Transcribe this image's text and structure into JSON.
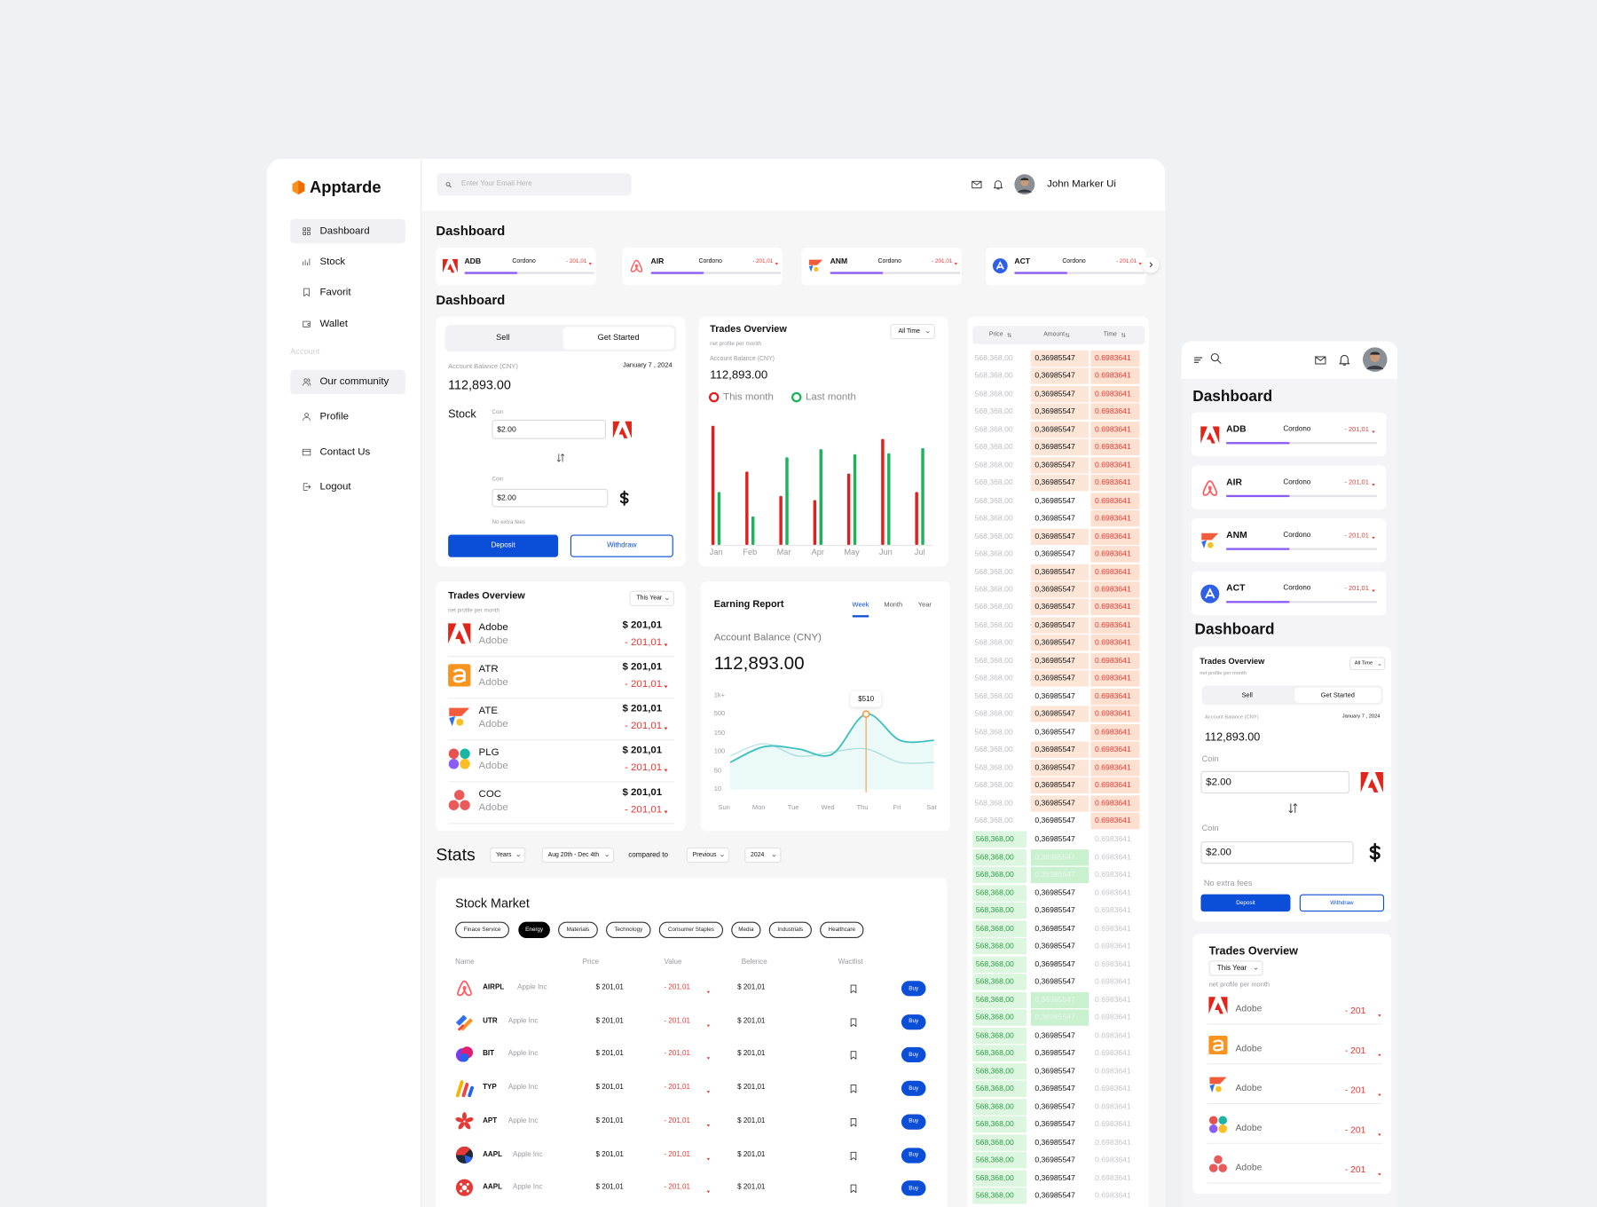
{
  "sidebar": {
    "brand": "Apptarde",
    "menu": [
      "Dashboard",
      "Stock",
      "Favorit",
      "Wallet"
    ],
    "section": "Account",
    "account_menu": [
      "Our community",
      "Profile",
      "Contact Us",
      "Logout"
    ]
  },
  "header": {
    "search_placeholder": "Enter Your Email Here",
    "user": "John Marker Ui"
  },
  "titles": [
    "Dashboard",
    "Dashboard"
  ],
  "tickers": [
    {
      "symbol": "ADB",
      "name": "Cordono",
      "change": "- 201,01"
    },
    {
      "symbol": "AIR",
      "name": "Cordono",
      "change": "- 201,01"
    },
    {
      "symbol": "ANM",
      "name": "Cordono",
      "change": "- 201,01"
    },
    {
      "symbol": "ACT",
      "name": "Cordono",
      "change": "- 201,01"
    }
  ],
  "exchange": {
    "tabs": [
      "Sell",
      "Get Started"
    ],
    "balance_label": "Account Balance (CNY)",
    "date": "January 7 , 2024",
    "balance": "112,893.00",
    "stock_label": "Stock",
    "coins": [
      {
        "label": "Coin",
        "value": "$2.00"
      },
      {
        "label": "Coin",
        "value": "$2.00"
      }
    ],
    "fees": "No extra fees",
    "buttons": [
      "Deposit",
      "Withdraw"
    ]
  },
  "chart_data": [
    {
      "type": "bar",
      "title": "Trades Overview",
      "period": "All Time",
      "subtitle": "net profile per month",
      "balance_label": "Account Balance (CNY)",
      "balance": "112,893.00",
      "categories": [
        "Jan",
        "Feb",
        "Mar",
        "Apr",
        "May",
        "Jun",
        "Jul"
      ],
      "series": [
        {
          "name": "This month",
          "color": "#e0201f",
          "values": [
            117,
            72,
            48,
            44,
            70,
            104,
            52
          ]
        },
        {
          "name": "Last month",
          "color": "#1cb35c",
          "values": [
            52,
            28,
            86,
            94,
            89,
            90,
            95
          ]
        }
      ],
      "ylim": [
        0,
        120
      ]
    },
    {
      "type": "line",
      "title": "Earning Report",
      "tabs": [
        "Week",
        "Month",
        "Year"
      ],
      "active_tab": 0,
      "balance_label": "Account Balance (CNY)",
      "balance": "112,893.00",
      "categories": [
        "Sun",
        "Mon",
        "Tue",
        "Wed",
        "Thu",
        "Fri",
        "Sat"
      ],
      "series": [
        {
          "color": "#3fc1bf",
          "values": [
            72,
            114,
            108,
            94,
            510,
            131,
            131
          ],
          "value_labels": [
            null,
            null,
            null,
            null,
            "$510",
            null,
            null
          ]
        },
        {
          "color": "#b9e4e3",
          "values": [
            89,
            122,
            89,
            100,
            108,
            72,
            72
          ]
        }
      ],
      "ylim": [
        10,
        1000
      ],
      "yticks": [
        10,
        50,
        100,
        150,
        500,
        {
          "value": 1000,
          "label": "1k+"
        }
      ]
    }
  ],
  "trades_overview": {
    "title": "Trades Overview",
    "period": "This Year",
    "subtitle": "net profile per month",
    "items": [
      {
        "symbol": "Adobe",
        "name": "Adobe",
        "price": "$ 201,01",
        "change": "- 201,01"
      },
      {
        "symbol": "ATR",
        "name": "Adobe",
        "price": "$ 201,01",
        "change": "- 201,01"
      },
      {
        "symbol": "ATE",
        "name": "Adobe",
        "price": "$ 201,01",
        "change": "- 201,01"
      },
      {
        "symbol": "PLG",
        "name": "Adobe",
        "price": "$ 201,01",
        "change": "- 201,01"
      },
      {
        "symbol": "COC",
        "name": "Adobe",
        "price": "$ 201,01",
        "change": "- 201,01"
      }
    ]
  },
  "stats": {
    "title": "Stats",
    "filters": [
      "Years",
      "Aug 20th - Dec 4th"
    ],
    "compare_label": "compared to",
    "compare_filters": [
      "Previous",
      "2024"
    ]
  },
  "stock_market": {
    "title": "Stock Market",
    "chips": [
      "Finace Service",
      "Energy",
      "Materials",
      "Technology",
      "Consumer Staples",
      "Media",
      "Industrials",
      "Healthcare"
    ],
    "active_chip": 1,
    "columns": [
      "Name",
      "Price",
      "Value",
      "Belence",
      "Wactlist"
    ],
    "rows": [
      {
        "symbol": "AIRPL",
        "company": "Apple Inc",
        "price": "$ 201,01",
        "change": "- 201,01",
        "balance": "$ 201,01",
        "action": "Buy"
      },
      {
        "symbol": "UTR",
        "company": "Apple Inc",
        "price": "$ 201,01",
        "change": "- 201,01",
        "balance": "$ 201,01",
        "action": "Buy"
      },
      {
        "symbol": "BIT",
        "company": "Apple Inc",
        "price": "$ 201,01",
        "change": "- 201,01",
        "balance": "$ 201,01",
        "action": "Buy"
      },
      {
        "symbol": "TYP",
        "company": "Apple Inc",
        "price": "$ 201,01",
        "change": "- 201,01",
        "balance": "$ 201,01",
        "action": "Buy"
      },
      {
        "symbol": "APT",
        "company": "Apple Inc",
        "price": "$ 201,01",
        "change": "- 201,01",
        "balance": "$ 201,01",
        "action": "Buy"
      },
      {
        "symbol": "AAPL",
        "company": "Apple Inc",
        "price": "$ 201,01",
        "change": "- 201,01",
        "balance": "$ 201,01",
        "action": "Buy"
      },
      {
        "symbol": "AAPL",
        "company": "Apple Inc",
        "price": "$ 201,01",
        "change": "- 201,01",
        "balance": "$ 201,01",
        "action": "Buy"
      }
    ]
  },
  "order_book": {
    "headers": [
      "Price",
      "Amount",
      "Time"
    ],
    "sells": [
      [
        "568,368,00",
        "0,36985547",
        "0.6983641"
      ],
      [
        "568,368,00",
        "0,36985547",
        "0.6983641"
      ],
      [
        "568,368,00",
        "0,36985547",
        "0.6983641"
      ],
      [
        "568,368,00",
        "0,36985547",
        "0.6983641"
      ],
      [
        "568,368,00",
        "0,36985547",
        "0.6983641"
      ],
      [
        "568,368,00",
        "0,36985547",
        "0.6983641"
      ],
      [
        "568,368,00",
        "0,36985547",
        "0.6983641"
      ],
      [
        "568,368,00",
        "0,36985547",
        "0.6983641"
      ],
      [
        "568,368,00",
        "0,36985547",
        "0.6983641"
      ],
      [
        "568,368,00",
        "0,36985547",
        "0.6983641"
      ],
      [
        "568,368,00",
        "0,36985547",
        "0.6983641"
      ],
      [
        "568,368,00",
        "0,36985547",
        "0.6983641"
      ],
      [
        "568,368,00",
        "0,36985547",
        "0.6983641"
      ],
      [
        "568,368,00",
        "0,36985547",
        "0.6983641"
      ],
      [
        "568,368,00",
        "0,36985547",
        "0.6983641"
      ],
      [
        "568,368,00",
        "0,36985547",
        "0.6983641"
      ],
      [
        "568,368,00",
        "0,36985547",
        "0.6983641"
      ],
      [
        "568,368,00",
        "0,36985547",
        "0.6983641"
      ],
      [
        "568,368,00",
        "0,36985547",
        "0.6983641"
      ],
      [
        "568,368,00",
        "0,36985547",
        "0.6983641"
      ],
      [
        "568,368,00",
        "0,36985547",
        "0.6983641"
      ],
      [
        "568,368,00",
        "0,36985547",
        "0.6983641"
      ],
      [
        "568,368,00",
        "0,36985547",
        "0.6983641"
      ],
      [
        "568,368,00",
        "0,36985547",
        "0.6983641"
      ],
      [
        "568,368,00",
        "0,36985547",
        "0.6983641"
      ],
      [
        "568,368,00",
        "0,36985547",
        "0.6983641"
      ],
      [
        "568,368,00",
        "0,36985547",
        "0.6983641"
      ]
    ],
    "buys": [
      [
        "568,368,00",
        "0,36985547",
        "0.6983641"
      ],
      [
        "568,368,00",
        "0,36985547",
        "0.6983641"
      ],
      [
        "568,368,00",
        "0,36985547",
        "0.6983641"
      ],
      [
        "568,368,00",
        "0,36985547",
        "0.6983641"
      ],
      [
        "568,368,00",
        "0,36985547",
        "0.6983641"
      ],
      [
        "568,368,00",
        "0,36985547",
        "0.6983641"
      ],
      [
        "568,368,00",
        "0,36985547",
        "0.6983641"
      ],
      [
        "568,368,00",
        "0,36985547",
        "0.6983641"
      ],
      [
        "568,368,00",
        "0,36985547",
        "0.6983641"
      ],
      [
        "568,368,00",
        "0,36985547",
        "0.6983641"
      ],
      [
        "568,368,00",
        "0,36985547",
        "0.6983641"
      ],
      [
        "568,368,00",
        "0,36985547",
        "0.6983641"
      ],
      [
        "568,368,00",
        "0,36985547",
        "0.6983641"
      ],
      [
        "568,368,00",
        "0,36985547",
        "0.6983641"
      ],
      [
        "568,368,00",
        "0,36985547",
        "0.6983641"
      ],
      [
        "568,368,00",
        "0,36985547",
        "0.6983641"
      ],
      [
        "568,368,00",
        "0,36985547",
        "0.6983641"
      ],
      [
        "568,368,00",
        "0,36985547",
        "0.6983641"
      ],
      [
        "568,368,00",
        "0,36985547",
        "0.6983641"
      ],
      [
        "568,368,00",
        "0,36985547",
        "0.6983641"
      ],
      [
        "568,368,00",
        "0,36985547",
        "0.6983641"
      ]
    ]
  },
  "mobile": {
    "title": "Dashboard",
    "tickers": [
      {
        "symbol": "ADB",
        "name": "Cordono",
        "change": "- 201,01"
      },
      {
        "symbol": "AIR",
        "name": "Cordono",
        "change": "- 201,01"
      },
      {
        "symbol": "ANM",
        "name": "Cordono",
        "change": "- 201,01"
      },
      {
        "symbol": "ACT",
        "name": "Cordono",
        "change": "- 201,01"
      }
    ],
    "section_title": "Dashboard",
    "widget": {
      "title": "Trades Overview",
      "period": "All Time",
      "subtitle": "net profile per month",
      "tabs": [
        "Sell",
        "Get Started"
      ],
      "balance_label": "Account Balance (CNY)",
      "date": "January 7 , 2024",
      "balance": "112,893.00",
      "coins": [
        {
          "label": "Coin",
          "value": "$2.00"
        },
        {
          "label": "Coin",
          "value": "$2.00"
        }
      ],
      "fees": "No extra fees",
      "buttons": [
        "Deposit",
        "Withdraw"
      ]
    },
    "trades": {
      "title": "Trades Overview",
      "period": "This Year",
      "subtitle": "net profile per month",
      "items": [
        {
          "name": "Adobe",
          "change": "- 201"
        },
        {
          "name": "Adobe",
          "change": "- 201"
        },
        {
          "name": "Adobe",
          "change": "- 201"
        },
        {
          "name": "Adobe",
          "change": "- 201"
        },
        {
          "name": "Adobe",
          "change": "- 201"
        }
      ]
    }
  }
}
